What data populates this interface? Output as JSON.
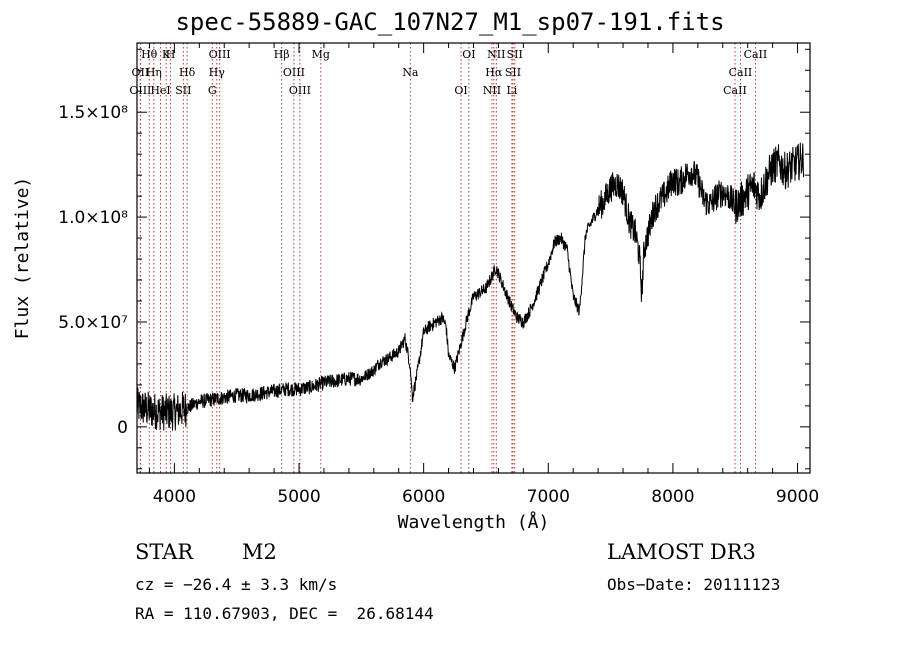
{
  "chart_data": {
    "type": "line",
    "title": "spec-55889-GAC_107N27_M1_sp07-191.fits",
    "xlabel": "Wavelength (Å)",
    "ylabel": "Flux (relative)",
    "xlim": [
      3700,
      9100
    ],
    "ylim": [
      -22000000,
      183000000
    ],
    "x_ticks": [
      4000,
      5000,
      6000,
      7000,
      8000,
      9000
    ],
    "x_tick_labels": [
      "4000",
      "5000",
      "6000",
      "7000",
      "8000",
      "9000"
    ],
    "y_ticks": [
      0,
      50000000,
      100000000,
      150000000
    ],
    "y_tick_labels": [
      "0",
      "5.0×10⁷",
      "1.0×10⁸",
      "1.5×10⁸"
    ],
    "series": [
      {
        "name": "flux",
        "x": [
          3700,
          3800,
          3900,
          4000,
          4100,
          4200,
          4300,
          4400,
          4500,
          4600,
          4700,
          4800,
          4900,
          5000,
          5100,
          5200,
          5300,
          5400,
          5500,
          5600,
          5650,
          5700,
          5800,
          5850,
          5890,
          5910,
          5950,
          6000,
          6050,
          6100,
          6150,
          6180,
          6200,
          6250,
          6300,
          6350,
          6400,
          6450,
          6500,
          6550,
          6580,
          6620,
          6700,
          6750,
          6800,
          6850,
          6900,
          6950,
          7000,
          7050,
          7100,
          7150,
          7200,
          7250,
          7300,
          7350,
          7400,
          7450,
          7500,
          7550,
          7600,
          7650,
          7700,
          7730,
          7750,
          7770,
          7800,
          7850,
          7900,
          7950,
          8000,
          8050,
          8100,
          8150,
          8200,
          8250,
          8300,
          8350,
          8400,
          8450,
          8500,
          8550,
          8600,
          8650,
          8700,
          8750,
          8800,
          8850,
          8900,
          8950,
          9000,
          9050
        ],
        "y": [
          10000000,
          8000000,
          7000000,
          7000000,
          9000000,
          12000000,
          13000000,
          14000000,
          15000000,
          15000000,
          16000000,
          17000000,
          18000000,
          18000000,
          19000000,
          21000000,
          22000000,
          23000000,
          23000000,
          27000000,
          31000000,
          32000000,
          36000000,
          42000000,
          30000000,
          14000000,
          26000000,
          45000000,
          48000000,
          50000000,
          52000000,
          48000000,
          34000000,
          28000000,
          40000000,
          52000000,
          62000000,
          64000000,
          66000000,
          72000000,
          76000000,
          70000000,
          58000000,
          52000000,
          50000000,
          55000000,
          62000000,
          70000000,
          78000000,
          88000000,
          90000000,
          85000000,
          62000000,
          55000000,
          92000000,
          98000000,
          104000000,
          108000000,
          114000000,
          116000000,
          112000000,
          98000000,
          92000000,
          82000000,
          64000000,
          85000000,
          92000000,
          104000000,
          108000000,
          112000000,
          118000000,
          116000000,
          120000000,
          122000000,
          118000000,
          108000000,
          106000000,
          110000000,
          112000000,
          110000000,
          105000000,
          108000000,
          112000000,
          115000000,
          110000000,
          118000000,
          124000000,
          126000000,
          122000000,
          124000000,
          126000000,
          128000000
        ]
      }
    ],
    "line_markers": [
      {
        "label": "Hθ",
        "x": 3798
      },
      {
        "label": "OII",
        "x": 3727
      },
      {
        "label": "OIII",
        "x": 3727
      },
      {
        "label": "K",
        "x": 3934
      },
      {
        "label": "Hη",
        "x": 3835
      },
      {
        "label": "HeI",
        "x": 3889
      },
      {
        "label": "H",
        "x": 3969
      },
      {
        "label": "Hδ",
        "x": 4102
      },
      {
        "label": "SII",
        "x": 4072
      },
      {
        "label": "OIII",
        "x": 4363
      },
      {
        "label": "Hγ",
        "x": 4340
      },
      {
        "label": "G",
        "x": 4304
      },
      {
        "label": "Hβ",
        "x": 4861
      },
      {
        "label": "OIII",
        "x": 4959
      },
      {
        "label": "OIII",
        "x": 5007
      },
      {
        "label": "Mg",
        "x": 5175
      },
      {
        "label": "Na",
        "x": 5893
      },
      {
        "label": "OI",
        "x": 6300
      },
      {
        "label": "OI",
        "x": 6363
      },
      {
        "label": "Hα",
        "x": 6563
      },
      {
        "label": "NII",
        "x": 6548
      },
      {
        "label": "NII",
        "x": 6583
      },
      {
        "label": "SII",
        "x": 6717
      },
      {
        "label": "Li",
        "x": 6708
      },
      {
        "label": "SII",
        "x": 6731
      },
      {
        "label": "CaII",
        "x": 8542
      },
      {
        "label": "CaII",
        "x": 8498
      },
      {
        "label": "CaII",
        "x": 8662
      }
    ]
  },
  "info": {
    "class": "STAR",
    "subclass": "M2",
    "survey": "LAMOST DR3",
    "cz": "cz = −26.4 ± 3.3 km/s",
    "obs_date": "Obs−Date: 20111123",
    "coords": "RA = 110.67903, DEC =  26.68144"
  }
}
